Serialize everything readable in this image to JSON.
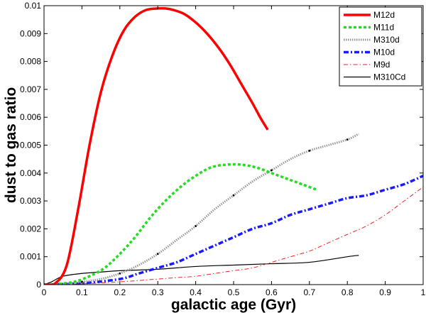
{
  "chart_data": {
    "type": "line",
    "title": "",
    "xlabel": "galactic age (Gyr)",
    "ylabel": "dust to gas ratio",
    "xlim": [
      0,
      1
    ],
    "ylim": [
      0,
      0.01
    ],
    "xticks": [
      0,
      0.1,
      0.2,
      0.3,
      0.4,
      0.5,
      0.6,
      0.7,
      0.8,
      0.9,
      1
    ],
    "xtick_labels": [
      "0",
      "0.1",
      "0.2",
      "0.3",
      "0.4",
      "0.5",
      "0.6",
      "0.7",
      "0.8",
      "0.9",
      "1"
    ],
    "yticks": [
      0,
      0.001,
      0.002,
      0.003,
      0.004,
      0.005,
      0.006,
      0.007,
      0.008,
      0.009,
      0.01
    ],
    "ytick_labels": [
      "0",
      "0.001",
      "0.002",
      "0.003",
      "0.004",
      "0.005",
      "0.006",
      "0.007",
      "0.008",
      "0.009",
      "0.01"
    ],
    "grid": false,
    "legend_position": "top-right",
    "series": [
      {
        "name": "M12d",
        "color": "#ff0000",
        "style": "solid-thick",
        "x": [
          0,
          0.03,
          0.06,
          0.09,
          0.12,
          0.15,
          0.18,
          0.21,
          0.24,
          0.27,
          0.3,
          0.32,
          0.34,
          0.37,
          0.4,
          0.43,
          0.46,
          0.49,
          0.52,
          0.55,
          0.57,
          0.59
        ],
        "y": [
          0,
          5e-05,
          0.0007,
          0.0027,
          0.005,
          0.0069,
          0.0082,
          0.0091,
          0.0096,
          0.00985,
          0.0099,
          0.0099,
          0.00985,
          0.0097,
          0.0094,
          0.009,
          0.0085,
          0.0079,
          0.0072,
          0.0065,
          0.006,
          0.00555
        ]
      },
      {
        "name": "M11d",
        "color": "#22dd22",
        "style": "dotted-thick",
        "x": [
          0,
          0.04,
          0.08,
          0.12,
          0.16,
          0.2,
          0.24,
          0.28,
          0.32,
          0.36,
          0.4,
          0.44,
          0.48,
          0.52,
          0.56,
          0.6,
          0.64,
          0.68,
          0.72
        ],
        "y": [
          0,
          3e-05,
          0.0001,
          0.0003,
          0.0006,
          0.0011,
          0.0017,
          0.0024,
          0.003,
          0.0035,
          0.0039,
          0.0042,
          0.0043,
          0.0043,
          0.0042,
          0.004,
          0.0038,
          0.0036,
          0.0034
        ]
      },
      {
        "name": "M310d",
        "color": "#999999",
        "style": "gray-dotted",
        "x": [
          0,
          0.05,
          0.1,
          0.15,
          0.2,
          0.25,
          0.3,
          0.35,
          0.4,
          0.45,
          0.5,
          0.55,
          0.6,
          0.65,
          0.7,
          0.75,
          0.8,
          0.83
        ],
        "y": [
          0,
          2e-05,
          0.0001,
          0.0002,
          0.0004,
          0.0007,
          0.0011,
          0.0016,
          0.0021,
          0.0027,
          0.0032,
          0.0037,
          0.0041,
          0.0045,
          0.0048,
          0.005,
          0.0052,
          0.0054
        ]
      },
      {
        "name": "M10d",
        "color": "#1a1aff",
        "style": "dashdot-thick",
        "x": [
          0,
          0.1,
          0.2,
          0.25,
          0.3,
          0.35,
          0.4,
          0.45,
          0.5,
          0.55,
          0.6,
          0.65,
          0.7,
          0.75,
          0.8,
          0.85,
          0.9,
          0.95,
          1.0
        ],
        "y": [
          0,
          5e-05,
          0.0002,
          0.0004,
          0.0006,
          0.0008,
          0.0011,
          0.0014,
          0.0017,
          0.002,
          0.0022,
          0.0025,
          0.0027,
          0.0029,
          0.0031,
          0.0032,
          0.0034,
          0.0036,
          0.0039
        ]
      },
      {
        "name": "M9d",
        "color": "#ee2222",
        "style": "dashdot-thin",
        "x": [
          0,
          0.1,
          0.2,
          0.3,
          0.35,
          0.4,
          0.45,
          0.5,
          0.55,
          0.6,
          0.65,
          0.7,
          0.75,
          0.8,
          0.85,
          0.9,
          0.95,
          1.0
        ],
        "y": [
          0,
          3e-05,
          0.0001,
          0.0002,
          0.00025,
          0.0003,
          0.0004,
          0.0005,
          0.0006,
          0.0008,
          0.001,
          0.0012,
          0.0015,
          0.0018,
          0.0021,
          0.0025,
          0.003,
          0.0035
        ]
      },
      {
        "name": "M310Cd",
        "color": "#000000",
        "style": "solid-thin",
        "x": [
          0,
          0.02,
          0.05,
          0.1,
          0.15,
          0.2,
          0.3,
          0.4,
          0.5,
          0.6,
          0.7,
          0.8,
          0.83
        ],
        "y": [
          0,
          0.0001,
          0.0003,
          0.0004,
          0.00045,
          0.0005,
          0.00055,
          0.00065,
          0.0007,
          0.00075,
          0.0008,
          0.001,
          0.00105
        ]
      }
    ]
  }
}
